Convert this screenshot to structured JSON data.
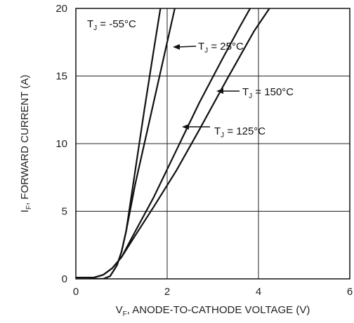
{
  "chart_data": {
    "type": "line",
    "xlim": [
      0,
      6
    ],
    "ylim": [
      0,
      20
    ],
    "x_ticks": [
      "0",
      "2",
      "4",
      "6"
    ],
    "y_ticks": [
      "0",
      "5",
      "10",
      "15",
      "20"
    ],
    "grid": true,
    "xlabel": {
      "main": "V",
      "sub": "F",
      "rest": ", ANODE-TO-CATHODE VOLTAGE (V)"
    },
    "ylabel": {
      "main": "I",
      "sub": "F",
      "rest": ", FORWARD CURRENT (A)"
    },
    "series": [
      {
        "name": "T_J = -55°C",
        "label": {
          "prefix": "T",
          "sub": "J",
          "suffix": " = -55°C"
        },
        "x": [
          0.3,
          0.6,
          0.75,
          0.9,
          1.0,
          1.1,
          1.3,
          1.5,
          1.7,
          1.9
        ],
        "y": [
          0,
          0,
          0.2,
          1.0,
          2.0,
          3.5,
          8.0,
          12.5,
          16.8,
          21
        ]
      },
      {
        "name": "T_J = 25°C",
        "label": {
          "prefix": "T",
          "sub": "J",
          "suffix": " = 25°C"
        },
        "x": [
          0.3,
          0.6,
          0.75,
          0.9,
          1.0,
          1.1,
          1.3,
          1.6,
          1.9,
          2.2
        ],
        "y": [
          0,
          0,
          0.2,
          1.0,
          2.0,
          3.5,
          7.0,
          11.5,
          16.0,
          20.5
        ]
      },
      {
        "name": "T_J = 150°C",
        "label": {
          "prefix": "T",
          "sub": "J",
          "suffix": " = 150°C"
        },
        "x": [
          0,
          0.2,
          0.4,
          0.6,
          0.8,
          1.0,
          1.3,
          1.7,
          2.2,
          2.7,
          3.2,
          3.6,
          3.9
        ],
        "y": [
          0.1,
          0.1,
          0.1,
          0.3,
          0.8,
          1.6,
          3.5,
          6.0,
          9.5,
          13.0,
          16.2,
          18.7,
          20.5
        ]
      },
      {
        "name": "T_J = 125°C",
        "label": {
          "prefix": "T",
          "sub": "J",
          "suffix": " = 125°C"
        },
        "x": [
          0,
          0.2,
          0.4,
          0.6,
          0.8,
          1.0,
          1.3,
          1.7,
          2.2,
          2.7,
          3.3,
          3.9,
          4.4
        ],
        "y": [
          0.1,
          0.1,
          0.1,
          0.3,
          0.8,
          1.6,
          3.2,
          5.3,
          8.0,
          11.0,
          14.7,
          18.3,
          20.8
        ]
      }
    ]
  }
}
